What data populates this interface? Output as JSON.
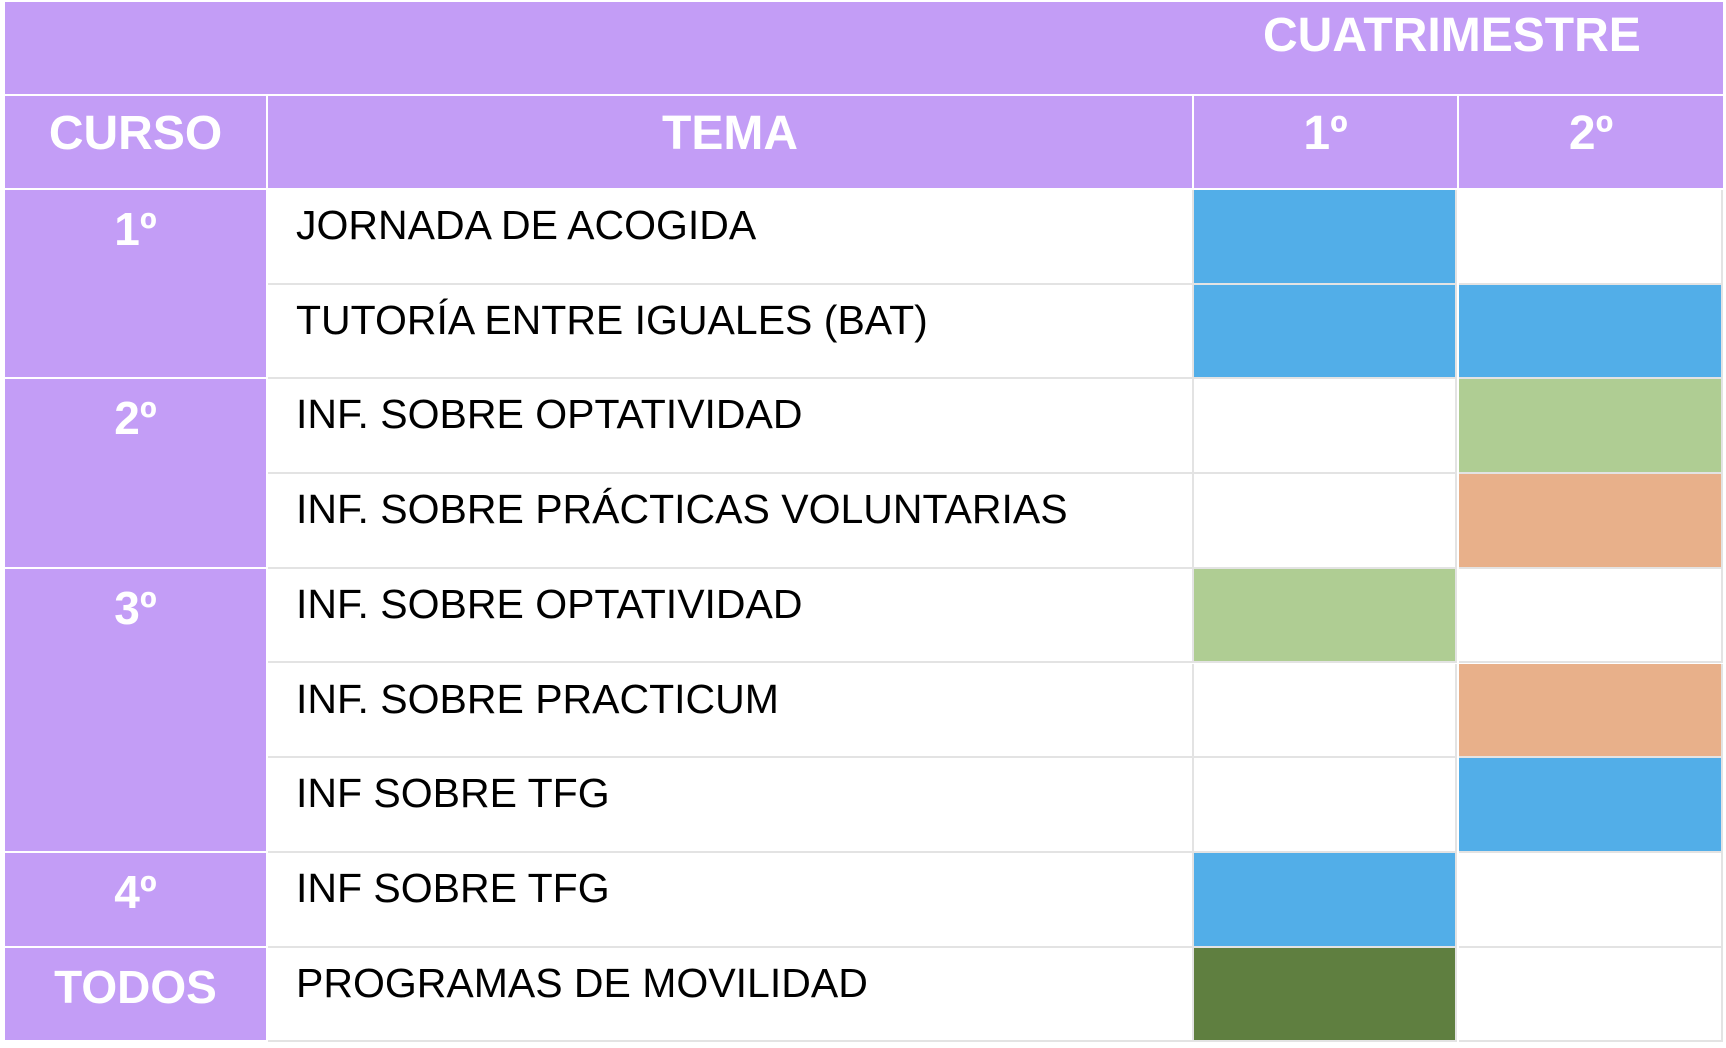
{
  "header": {
    "group_label": "CUATRIMESTRE",
    "col_curso": "CURSO",
    "col_tema": "TEMA",
    "col_c1": "1º",
    "col_c2": "2º"
  },
  "colors": {
    "header": "#c39df6",
    "blue": "#52aee8",
    "light_green": "#afcd93",
    "orange": "#e8b08a",
    "dark_green": "#5f7f40",
    "empty": "#ffffff"
  },
  "groups": [
    {
      "curso": "1º",
      "rows": 2
    },
    {
      "curso": "2º",
      "rows": 2
    },
    {
      "curso": "3º",
      "rows": 3
    },
    {
      "curso": "4º",
      "rows": 1
    },
    {
      "curso": "TODOS",
      "rows": 1
    }
  ],
  "rows": [
    {
      "tema": "JORNADA DE ACOGIDA",
      "c1": "blue",
      "c2": "empty"
    },
    {
      "tema": "TUTORÍA ENTRE IGUALES (BAT)",
      "c1": "blue",
      "c2": "blue"
    },
    {
      "tema": "INF. SOBRE OPTATIVIDAD",
      "c1": "empty",
      "c2": "light_green"
    },
    {
      "tema": "INF. SOBRE PRÁCTICAS VOLUNTARIAS",
      "c1": "empty",
      "c2": "orange"
    },
    {
      "tema": "INF. SOBRE OPTATIVIDAD",
      "c1": "light_green",
      "c2": "empty"
    },
    {
      "tema": "INF. SOBRE PRACTICUM",
      "c1": "empty",
      "c2": "orange"
    },
    {
      "tema": "INF SOBRE TFG",
      "c1": "empty",
      "c2": "blue"
    },
    {
      "tema": "INF SOBRE TFG",
      "c1": "blue",
      "c2": "empty"
    },
    {
      "tema": "PROGRAMAS DE MOVILIDAD",
      "c1": "dark_green",
      "c2": "empty"
    }
  ]
}
